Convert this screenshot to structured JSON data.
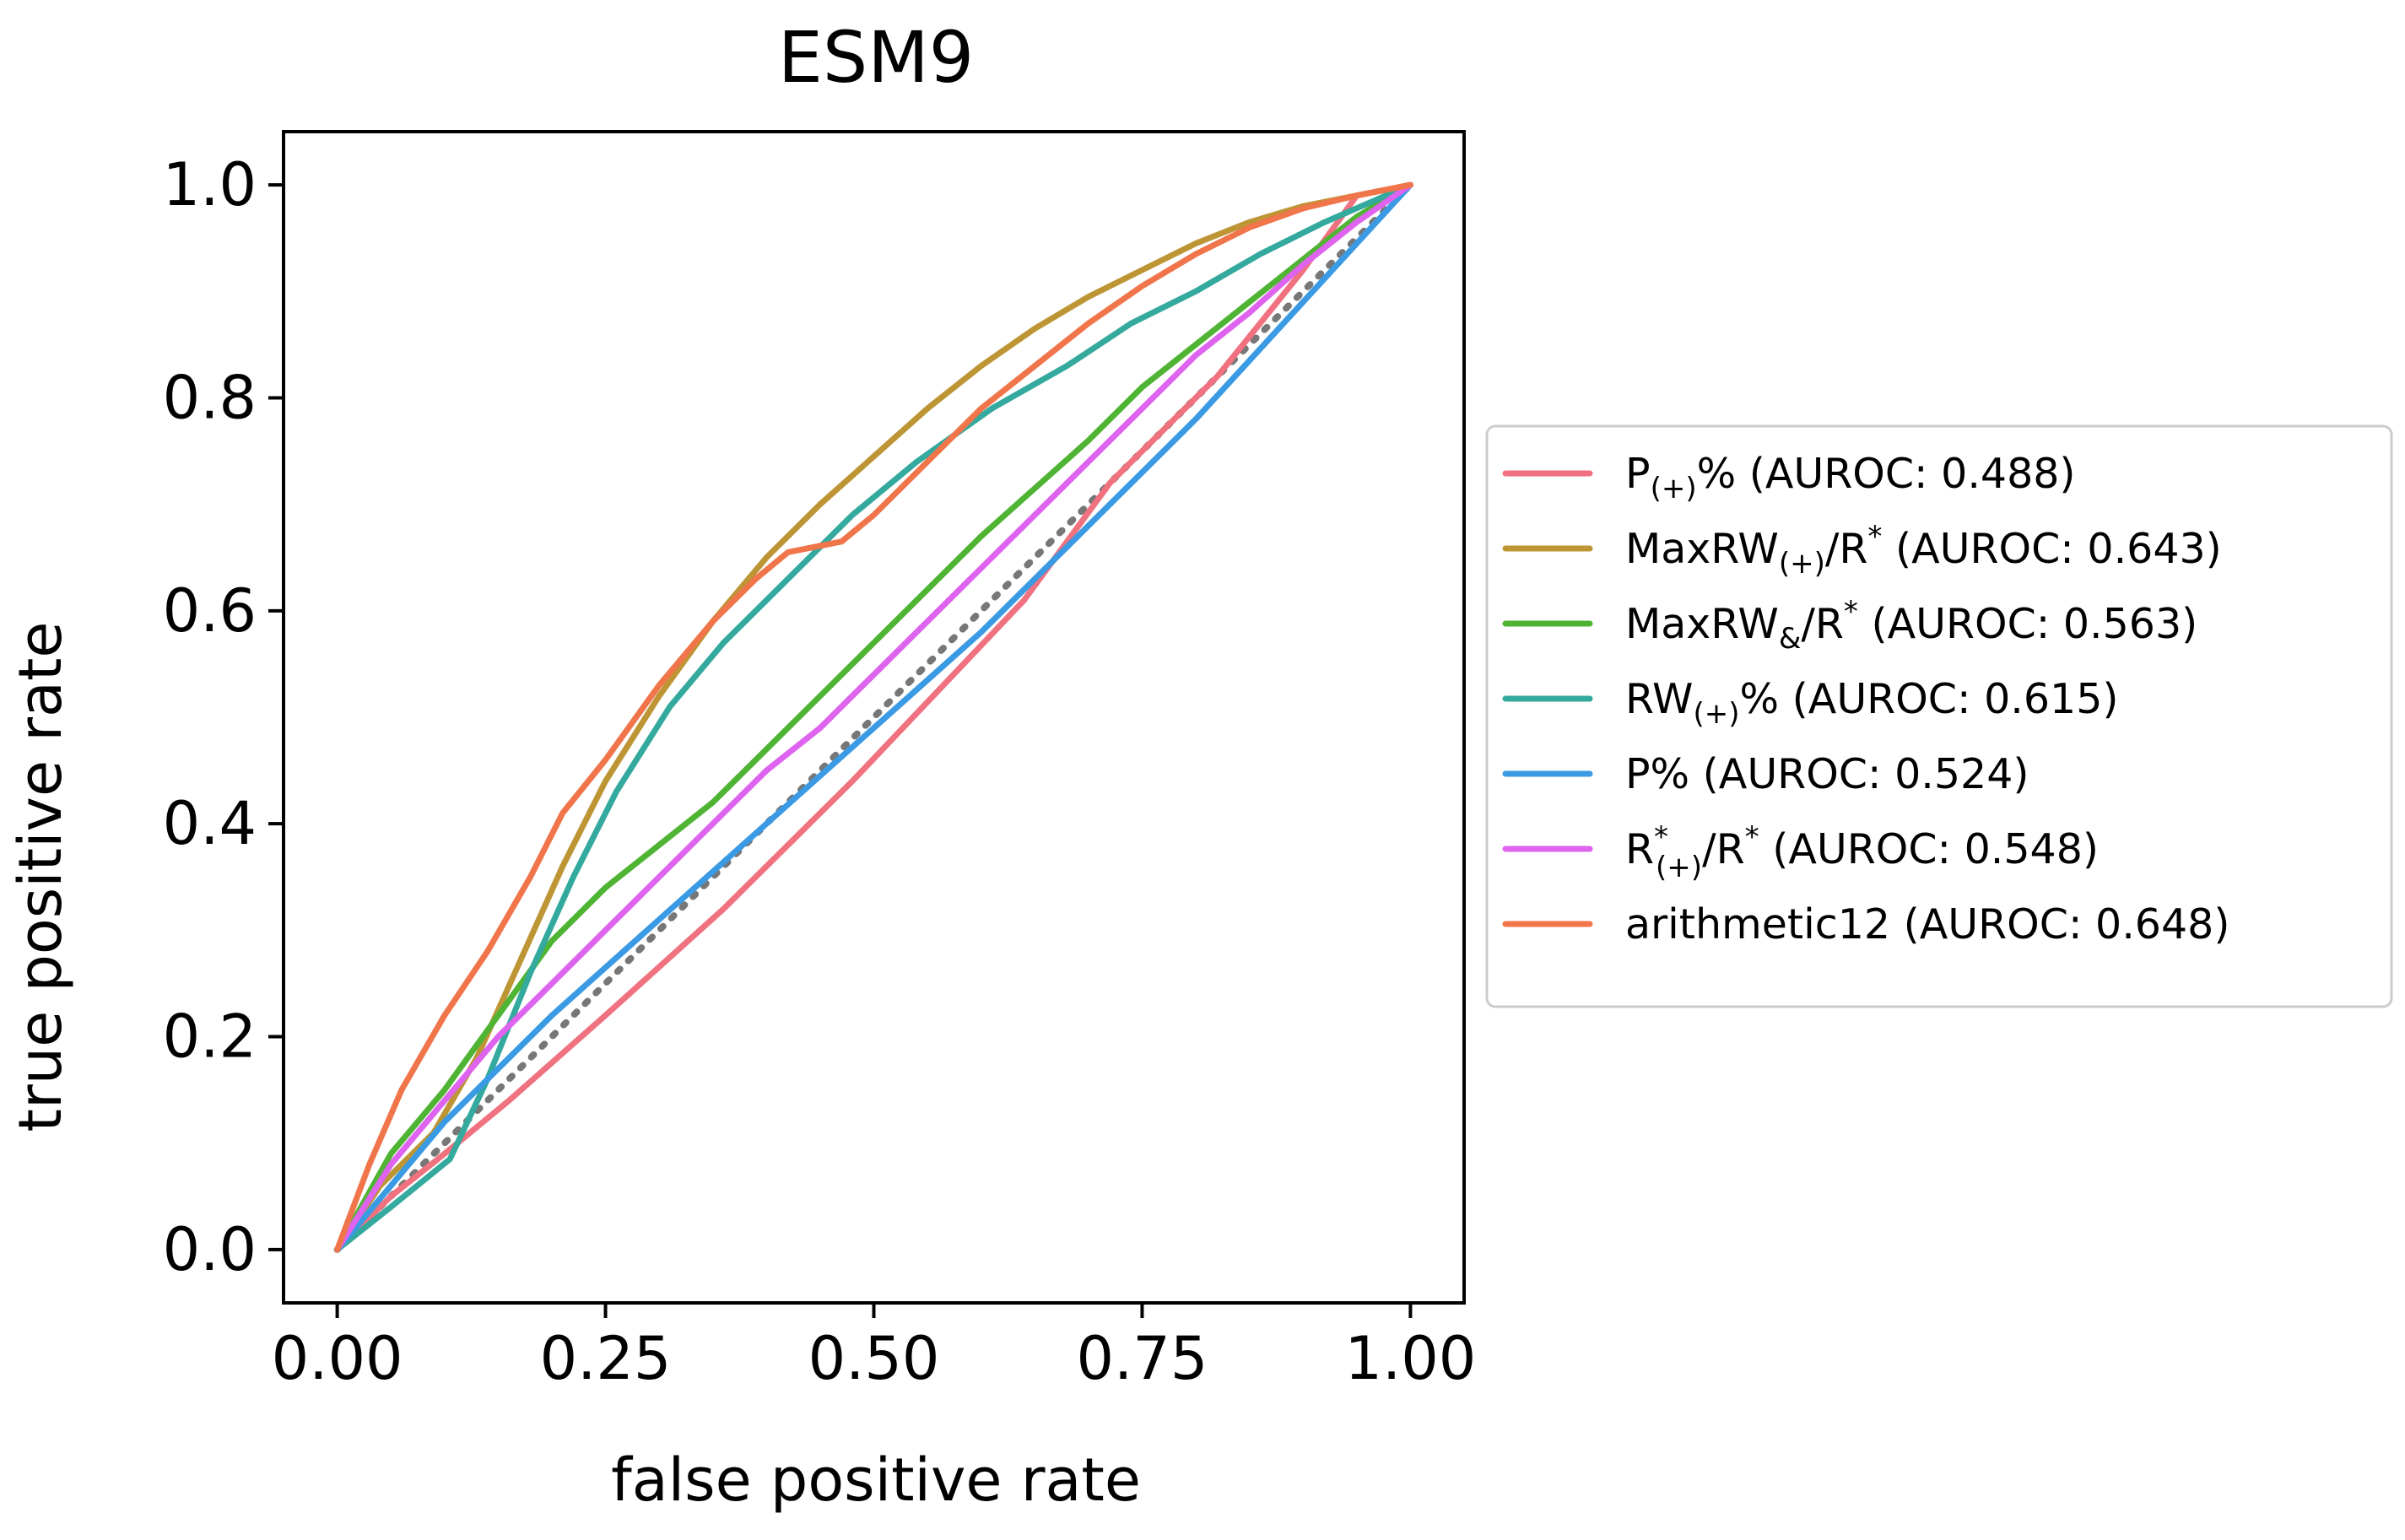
{
  "chart_data": {
    "type": "line",
    "title": "ESM9",
    "xlabel": "false positive rate",
    "ylabel": "true positive rate",
    "xlim": [
      -0.05,
      1.05
    ],
    "ylim": [
      -0.05,
      1.05
    ],
    "xticks": [
      0.0,
      0.25,
      0.5,
      0.75,
      1.0
    ],
    "xtick_labels": [
      "0.00",
      "0.25",
      "0.50",
      "0.75",
      "1.00"
    ],
    "yticks": [
      0.0,
      0.2,
      0.4,
      0.6,
      0.8,
      1.0
    ],
    "ytick_labels": [
      "0.0",
      "0.2",
      "0.4",
      "0.6",
      "0.8",
      "1.0"
    ],
    "grid": false,
    "legend_position": "outside-right",
    "reference_line": {
      "style": "dotted",
      "color": "#777777",
      "x": [
        0,
        1
      ],
      "y": [
        0,
        1
      ]
    },
    "series": [
      {
        "name": "P(+)% (AUROC: 0.488)",
        "label_main": "P",
        "label_sub": "(+)",
        "label_rest": "% (AUROC: 0.488)",
        "color": "#f0717f",
        "x": [
          0,
          0.05,
          0.1,
          0.16,
          0.25,
          0.36,
          0.48,
          0.64,
          0.72,
          0.82,
          0.9,
          0.95,
          1.0
        ],
        "y": [
          0,
          0.05,
          0.09,
          0.14,
          0.22,
          0.32,
          0.44,
          0.61,
          0.72,
          0.82,
          0.92,
          0.99,
          1.0
        ]
      },
      {
        "name": "MaxRW(+)/R* (AUROC: 0.643)",
        "label_main": "MaxRW",
        "label_sub": "(+)",
        "label_rest": "/R",
        "label_sup": "*",
        "label_tail": " (AUROC: 0.643)",
        "color": "#bd9535",
        "x": [
          0,
          0.04,
          0.09,
          0.13,
          0.17,
          0.21,
          0.25,
          0.3,
          0.35,
          0.4,
          0.45,
          0.5,
          0.55,
          0.6,
          0.65,
          0.7,
          0.75,
          0.8,
          0.85,
          0.9,
          0.95,
          1.0
        ],
        "y": [
          0,
          0.06,
          0.11,
          0.18,
          0.27,
          0.36,
          0.44,
          0.52,
          0.59,
          0.65,
          0.7,
          0.745,
          0.79,
          0.83,
          0.865,
          0.895,
          0.92,
          0.945,
          0.965,
          0.98,
          0.99,
          1.0
        ]
      },
      {
        "name": "MaxRW&/R* (AUROC: 0.563)",
        "label_main": "MaxRW",
        "label_sub": "&",
        "label_rest": "/R",
        "label_sup": "*",
        "label_tail": " (AUROC: 0.563)",
        "color": "#4fb434",
        "x": [
          0,
          0.05,
          0.1,
          0.15,
          0.2,
          0.25,
          0.3,
          0.35,
          0.4,
          0.45,
          0.5,
          0.55,
          0.6,
          0.65,
          0.7,
          0.75,
          0.8,
          0.85,
          0.9,
          0.95,
          1.0
        ],
        "y": [
          0,
          0.09,
          0.15,
          0.22,
          0.29,
          0.34,
          0.38,
          0.42,
          0.47,
          0.52,
          0.57,
          0.62,
          0.67,
          0.715,
          0.76,
          0.81,
          0.85,
          0.89,
          0.93,
          0.97,
          1.0
        ]
      },
      {
        "name": "RW(+)% (AUROC: 0.615)",
        "label_main": "RW",
        "label_sub": "(+)",
        "label_rest": "% (AUROC: 0.615)",
        "color": "#34a99d",
        "x": [
          0,
          0.05,
          0.105,
          0.14,
          0.18,
          0.22,
          0.26,
          0.31,
          0.36,
          0.42,
          0.48,
          0.54,
          0.61,
          0.68,
          0.74,
          0.8,
          0.86,
          0.92,
          1.0
        ],
        "y": [
          0,
          0.04,
          0.085,
          0.16,
          0.26,
          0.35,
          0.43,
          0.51,
          0.57,
          0.63,
          0.69,
          0.74,
          0.79,
          0.83,
          0.87,
          0.9,
          0.935,
          0.965,
          1.0
        ]
      },
      {
        "name": "P% (AUROC: 0.524)",
        "label_main": "P% (AUROC: 0.524)",
        "color": "#3a9ae4",
        "x": [
          0,
          0.05,
          0.1,
          0.15,
          0.2,
          0.3,
          0.4,
          0.5,
          0.6,
          0.7,
          0.8,
          0.9,
          1.0
        ],
        "y": [
          0,
          0.06,
          0.12,
          0.17,
          0.22,
          0.31,
          0.4,
          0.49,
          0.58,
          0.68,
          0.78,
          0.89,
          1.0
        ]
      },
      {
        "name": "R*(+)/R* (AUROC: 0.548)",
        "label_main": "R",
        "label_sup_sub_top": "*",
        "label_sub": "(+)",
        "label_rest": "/R",
        "label_sup": "*",
        "label_tail": " (AUROC: 0.548)",
        "color": "#de63ee",
        "x": [
          0,
          0.05,
          0.1,
          0.15,
          0.2,
          0.25,
          0.3,
          0.35,
          0.4,
          0.45,
          0.5,
          0.55,
          0.6,
          0.65,
          0.7,
          0.75,
          0.8,
          0.85,
          0.9,
          0.95,
          1.0
        ],
        "y": [
          0,
          0.08,
          0.14,
          0.2,
          0.25,
          0.3,
          0.35,
          0.4,
          0.45,
          0.49,
          0.54,
          0.59,
          0.64,
          0.69,
          0.74,
          0.79,
          0.84,
          0.88,
          0.925,
          0.965,
          1.0
        ]
      },
      {
        "name": "arithmetic12 (AUROC: 0.648)",
        "label_main": "arithmetic12 (AUROC: 0.648)",
        "color": "#f0754a",
        "x": [
          0,
          0.03,
          0.06,
          0.1,
          0.14,
          0.18,
          0.21,
          0.25,
          0.3,
          0.35,
          0.39,
          0.42,
          0.47,
          0.5,
          0.55,
          0.6,
          0.65,
          0.7,
          0.75,
          0.8,
          0.85,
          0.9,
          0.95,
          1.0
        ],
        "y": [
          0,
          0.08,
          0.15,
          0.22,
          0.28,
          0.35,
          0.41,
          0.46,
          0.53,
          0.59,
          0.63,
          0.655,
          0.665,
          0.69,
          0.74,
          0.79,
          0.83,
          0.87,
          0.905,
          0.935,
          0.96,
          0.978,
          0.99,
          1.0
        ]
      }
    ]
  }
}
